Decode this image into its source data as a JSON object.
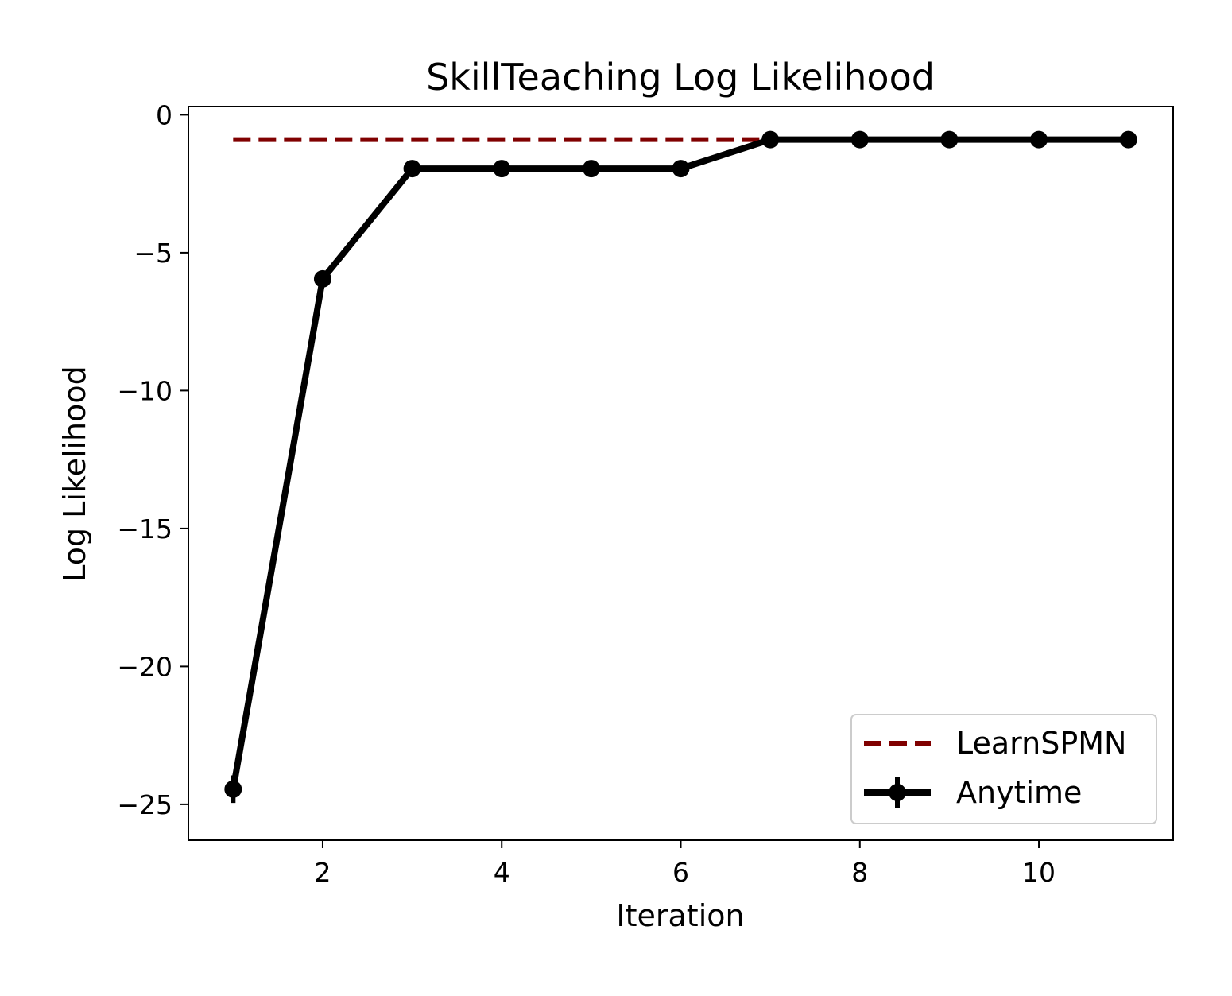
{
  "chart_data": {
    "type": "line",
    "title": "SkillTeaching Log Likelihood",
    "xlabel": "Iteration",
    "ylabel": "Log Likelihood",
    "xlim": [
      0.5,
      11.5
    ],
    "ylim": [
      -26.3,
      0.3
    ],
    "xticks": [
      2,
      4,
      6,
      8,
      10
    ],
    "xtick_labels": [
      "2",
      "4",
      "6",
      "8",
      "10"
    ],
    "yticks": [
      0,
      -5,
      -10,
      -15,
      -20,
      -25
    ],
    "ytick_labels": [
      "0",
      "−5",
      "−10",
      "−15",
      "−20",
      "−25"
    ],
    "grid": false,
    "legend_position": "lower-right",
    "series": [
      {
        "name": "LearnSPMN",
        "style": "dashed",
        "color": "#800000",
        "x": [
          1,
          11
        ],
        "y": [
          -0.9,
          -0.9
        ]
      },
      {
        "name": "Anytime",
        "style": "solid-markers-errorbars",
        "color": "#000000",
        "x": [
          1,
          2,
          3,
          4,
          5,
          6,
          7,
          8,
          9,
          10,
          11
        ],
        "y": [
          -24.45,
          -5.95,
          -1.95,
          -1.95,
          -1.95,
          -1.95,
          -0.9,
          -0.9,
          -0.9,
          -0.9,
          -0.9
        ],
        "yerr": [
          0.5,
          0.05,
          0.05,
          0.05,
          0.05,
          0.05,
          0.05,
          0.05,
          0.05,
          0.05,
          0.05
        ]
      }
    ]
  }
}
